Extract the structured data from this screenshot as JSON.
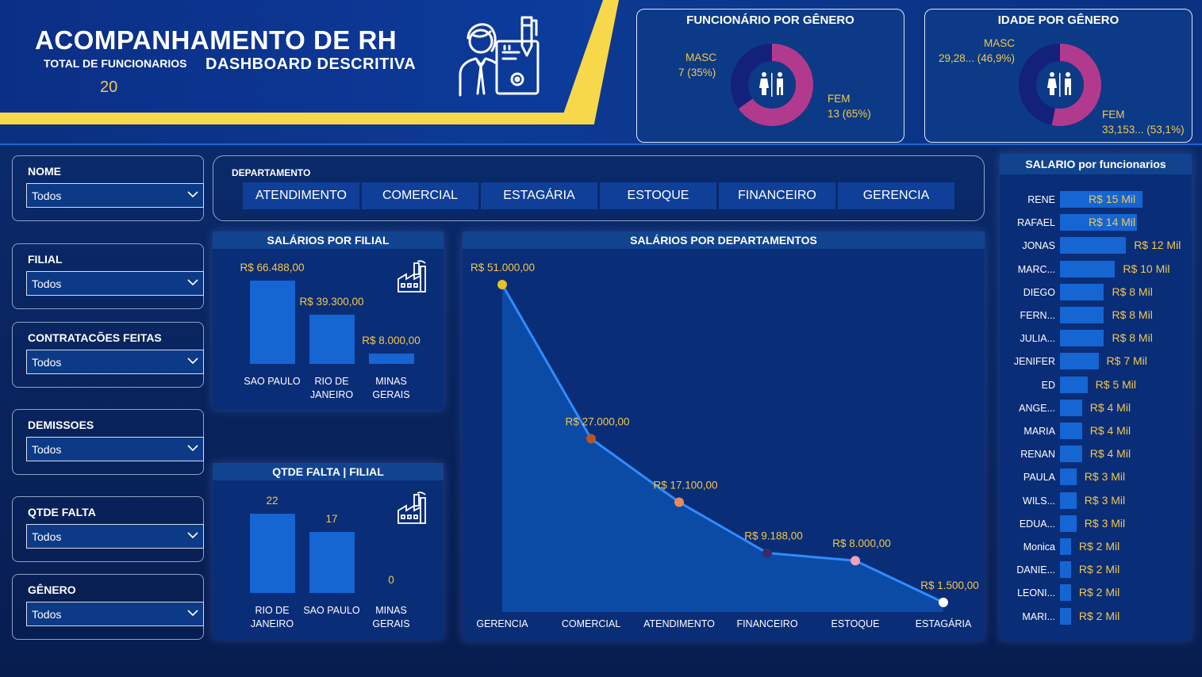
{
  "header": {
    "title": "ACOMPANHAMENTO DE RH",
    "subtitle": "DASHBOARD DESCRITIVA",
    "total_label": "TOTAL DE FUNCIONARIOS",
    "total_value": "20"
  },
  "gender_count": {
    "title": "FUNCIONÁRIO POR GÊNERO",
    "masc_label": "MASC",
    "masc_value": "7 (35%)",
    "fem_label": "FEM",
    "fem_value": "13 (65%)",
    "masc_fraction": 0.35,
    "fem_fraction": 0.65
  },
  "gender_age": {
    "title": "IDADE POR GÊNERO",
    "masc_label": "MASC",
    "masc_value": "29,28... (46,9%)",
    "fem_label": "FEM",
    "fem_value": "33,153... (53,1%)",
    "masc_fraction": 0.469,
    "fem_fraction": 0.531
  },
  "slicers": [
    {
      "title": "NOME",
      "value": "Todos"
    },
    {
      "title": "FILIAL",
      "value": "Todos"
    },
    {
      "title": "CONTRATACÕES FEITAS",
      "value": "Todos"
    },
    {
      "title": "DEMISSOES",
      "value": "Todos"
    },
    {
      "title": "QTDE FALTA",
      "value": "Todos"
    },
    {
      "title": "GÊNERO",
      "value": "Todos"
    }
  ],
  "departamento": {
    "label": "DEPARTAMENTO",
    "buttons": [
      "ATENDIMENTO",
      "COMERCIAL",
      "ESTAGÁRIA",
      "ESTOQUE",
      "FINANCEIRO",
      "GERENCIA"
    ]
  },
  "colors": {
    "masc": "#13217a",
    "fem": "#b23a8e",
    "bar": "#1565d3",
    "value": "#f2c94c",
    "line": "#2f8cff"
  },
  "chart_data": [
    {
      "type": "bar",
      "title": "SALÁRIOS POR FILIAL",
      "categories": [
        "SAO PAULO",
        "RIO DE JANEIRO",
        "MINAS GERAIS"
      ],
      "values": [
        66488,
        39300,
        8000
      ],
      "labels": [
        "R$ 66.488,00",
        "R$ 39.300,00",
        "R$ 8.000,00"
      ]
    },
    {
      "type": "bar",
      "title": "QTDE FALTA | FILIAL",
      "categories": [
        "RIO DE JANEIRO",
        "SAO PAULO",
        "MINAS GERAIS"
      ],
      "values": [
        22,
        17,
        0
      ],
      "labels": [
        "22",
        "17",
        "0"
      ]
    },
    {
      "type": "area",
      "title": "SALÁRIOS POR DEPARTAMENTOS",
      "categories": [
        "GERENCIA",
        "COMERCIAL",
        "ATENDIMENTO",
        "FINANCEIRO",
        "ESTOQUE",
        "ESTAGÁRIA"
      ],
      "values": [
        51000,
        27000,
        17100,
        9188,
        8000,
        1500
      ],
      "labels": [
        "R$ 51.000,00",
        "R$ 27.000,00",
        "R$ 17.100,00",
        "R$ 9.188,00",
        "R$ 8.000,00",
        "R$ 1.500,00"
      ],
      "point_colors": [
        "#e6c229",
        "#b8542a",
        "#e88a5a",
        "#3b2a6a",
        "#f2a2b8",
        "#ffffff"
      ]
    },
    {
      "type": "bar",
      "title": "SALARIO por funcionarios",
      "categories": [
        "RENE",
        "RAFAEL",
        "JONAS",
        "MARC...",
        "DIEGO",
        "FERN...",
        "JULIA...",
        "JENIFER",
        "ED",
        "ANGE...",
        "MARIA",
        "RENAN",
        "PAULA",
        "WILS...",
        "EDUA...",
        "Monica",
        "DANIE...",
        "LEONI...",
        "MARI..."
      ],
      "values": [
        15,
        14,
        12,
        10,
        8,
        8,
        8,
        7,
        5,
        4,
        4,
        4,
        3,
        3,
        3,
        2,
        2,
        2,
        2
      ],
      "labels": [
        "R$ 15 Mil",
        "R$ 14 Mil",
        "R$ 12 Mil",
        "R$ 10 Mil",
        "R$ 8 Mil",
        "R$ 8 Mil",
        "R$ 8 Mil",
        "R$ 7 Mil",
        "R$ 5 Mil",
        "R$ 4 Mil",
        "R$ 4 Mil",
        "R$ 4 Mil",
        "R$ 3 Mil",
        "R$ 3 Mil",
        "R$ 3 Mil",
        "R$ 2 Mil",
        "R$ 2 Mil",
        "R$ 2 Mil",
        "R$ 2 Mil"
      ]
    }
  ]
}
